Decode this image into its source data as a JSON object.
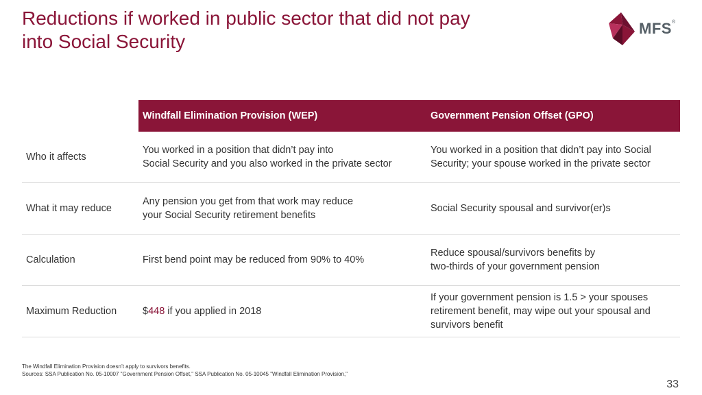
{
  "title": "Reductions if worked in public sector that did not pay into Social Security",
  "logo": {
    "text": "MFS",
    "mark": "®"
  },
  "table": {
    "headers": [
      "",
      "Windfall Elimination Provision (WEP)",
      "Government Pension Offset (GPO)"
    ],
    "rows": [
      {
        "label": "Who it affects",
        "wep": [
          "You worked in a position that didn’t pay into",
          "Social Security and you also worked in the private sector"
        ],
        "gpo": [
          "You worked in a position that didn’t pay into Social",
          "Security; your spouse worked in the private sector"
        ]
      },
      {
        "label": "What it may reduce",
        "wep": [
          "Any pension you get from that work may reduce",
          "your Social Security retirement benefits"
        ],
        "gpo": [
          "Social Security spousal and survivor(er)s"
        ]
      },
      {
        "label": "Calculation",
        "wep": [
          "First bend point may be reduced from 90% to 40%"
        ],
        "gpo": [
          "Reduce spousal/survivors benefits by",
          "two-thirds of your government pension"
        ]
      },
      {
        "label": "Maximum Reduction",
        "wep_prefix": "$",
        "wep_amount": "448",
        "wep_suffix": " if you applied in 2018",
        "gpo": [
          "If your government pension is 1.5 > your spouses",
          "retirement benefit, may wipe out your spousal and",
          "survivors benefit"
        ]
      }
    ]
  },
  "footnotes": [
    "The Windfall Elimination Provision doesn’t apply to survivors benefits.",
    "Sources: SSA Publication No. 05-10007 \"Government Pension Offset,\" SSA Publication No. 05-10045 \"Windfall Elimination Provision,\""
  ],
  "page_number": "33",
  "colors": {
    "accent": "#8a1538",
    "logo_gray": "#555f66"
  },
  "icons": {
    "logo": "mfs-logo-mark"
  }
}
